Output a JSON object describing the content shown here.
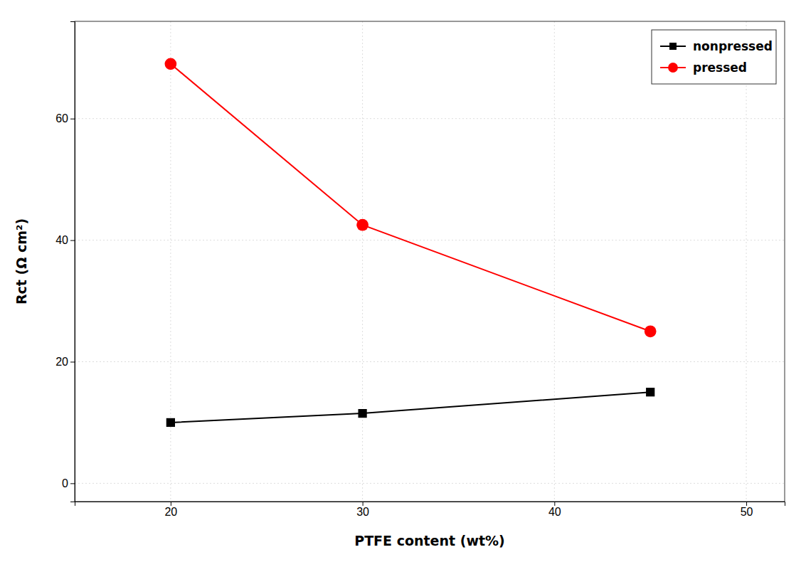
{
  "chart_data": {
    "type": "line",
    "xlabel": "PTFE content (wt%)",
    "ylabel": "Rct (Ω cm²)",
    "x": [
      20,
      30,
      45
    ],
    "series": [
      {
        "name": "nonpressed",
        "color": "#000000",
        "marker": "square",
        "values": [
          10,
          11.5,
          15
        ]
      },
      {
        "name": "pressed",
        "color": "#ff0000",
        "marker": "circle",
        "values": [
          69,
          42.5,
          25
        ]
      }
    ],
    "xlim": [
      15,
      52
    ],
    "ylim": [
      -3,
      76
    ],
    "xticks": [
      20,
      30,
      40,
      50
    ],
    "yticks": [
      0,
      20,
      40,
      60
    ],
    "grid": true,
    "legend": "upper right"
  }
}
